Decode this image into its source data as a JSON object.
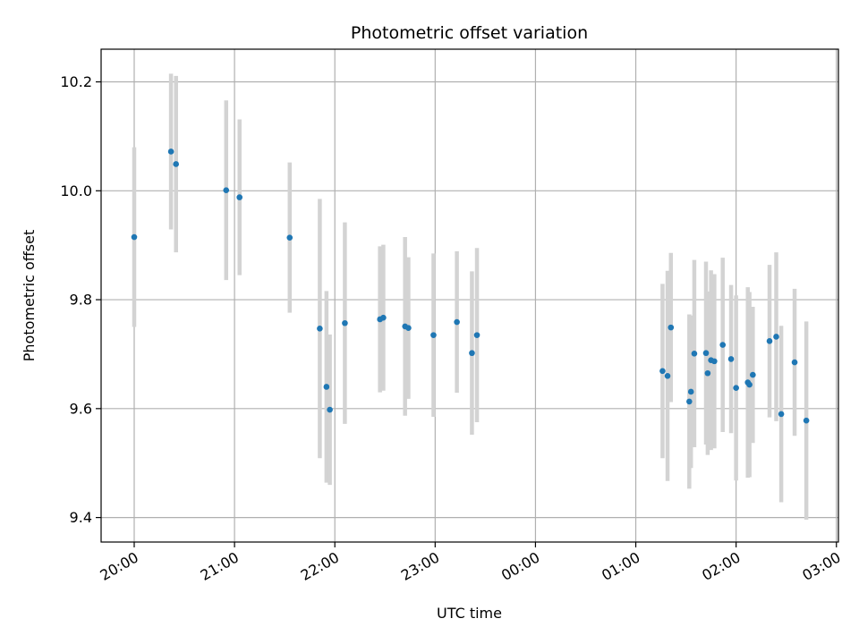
{
  "chart_data": {
    "type": "scatter",
    "title": "Photometric offset variation",
    "xlabel": "UTC time",
    "ylabel": "Photometric offset",
    "x_ticks": [
      "20:00",
      "21:00",
      "22:00",
      "23:00",
      "00:00",
      "01:00",
      "02:00",
      "03:00"
    ],
    "y_ticks": [
      "9.4",
      "9.6",
      "9.8",
      "10.0",
      "10.2"
    ],
    "xlim_hours": [
      19.67,
      27.02
    ],
    "ylim": [
      9.355,
      10.26
    ],
    "grid": true,
    "colors": {
      "point": "#1f77b4",
      "errorbar": "#d3d3d3",
      "grid": "#b0b0b0"
    },
    "points": [
      {
        "time": "20:00",
        "y": 9.915,
        "err": 0.165
      },
      {
        "time": "20:22",
        "y": 10.072,
        "err": 0.143
      },
      {
        "time": "20:25",
        "y": 10.049,
        "err": 0.162
      },
      {
        "time": "20:55",
        "y": 10.001,
        "err": 0.165
      },
      {
        "time": "21:03",
        "y": 9.988,
        "err": 0.143
      },
      {
        "time": "21:33",
        "y": 9.914,
        "err": 0.138
      },
      {
        "time": "21:51",
        "y": 9.747,
        "err": 0.238
      },
      {
        "time": "21:55",
        "y": 9.64,
        "err": 0.176
      },
      {
        "time": "21:57",
        "y": 9.598,
        "err": 0.138
      },
      {
        "time": "22:06",
        "y": 9.757,
        "err": 0.185
      },
      {
        "time": "22:27",
        "y": 9.764,
        "err": 0.134
      },
      {
        "time": "22:29",
        "y": 9.767,
        "err": 0.134
      },
      {
        "time": "22:42",
        "y": 9.751,
        "err": 0.164
      },
      {
        "time": "22:44",
        "y": 9.748,
        "err": 0.13
      },
      {
        "time": "22:59",
        "y": 9.735,
        "err": 0.15
      },
      {
        "time": "23:13",
        "y": 9.759,
        "err": 0.13
      },
      {
        "time": "23:22",
        "y": 9.702,
        "err": 0.15
      },
      {
        "time": "23:25",
        "y": 9.735,
        "err": 0.16
      },
      {
        "time": "01:16",
        "y": 9.669,
        "err": 0.16
      },
      {
        "time": "01:19",
        "y": 9.66,
        "err": 0.193
      },
      {
        "time": "01:21",
        "y": 9.749,
        "err": 0.137
      },
      {
        "time": "01:32",
        "y": 9.613,
        "err": 0.16
      },
      {
        "time": "01:33",
        "y": 9.631,
        "err": 0.14
      },
      {
        "time": "01:35",
        "y": 9.701,
        "err": 0.172
      },
      {
        "time": "01:42",
        "y": 9.702,
        "err": 0.168
      },
      {
        "time": "01:43",
        "y": 9.665,
        "err": 0.15
      },
      {
        "time": "01:45",
        "y": 9.689,
        "err": 0.165
      },
      {
        "time": "01:47",
        "y": 9.687,
        "err": 0.16
      },
      {
        "time": "01:52",
        "y": 9.717,
        "err": 0.16
      },
      {
        "time": "01:57",
        "y": 9.691,
        "err": 0.136
      },
      {
        "time": "02:00",
        "y": 9.638,
        "err": 0.17
      },
      {
        "time": "02:07",
        "y": 9.648,
        "err": 0.175
      },
      {
        "time": "02:08",
        "y": 9.644,
        "err": 0.17
      },
      {
        "time": "02:10",
        "y": 9.662,
        "err": 0.125
      },
      {
        "time": "02:20",
        "y": 9.724,
        "err": 0.14
      },
      {
        "time": "02:24",
        "y": 9.732,
        "err": 0.155
      },
      {
        "time": "02:27",
        "y": 9.59,
        "err": 0.162
      },
      {
        "time": "02:35",
        "y": 9.685,
        "err": 0.135
      },
      {
        "time": "02:42",
        "y": 9.578,
        "err": 0.182
      }
    ]
  }
}
